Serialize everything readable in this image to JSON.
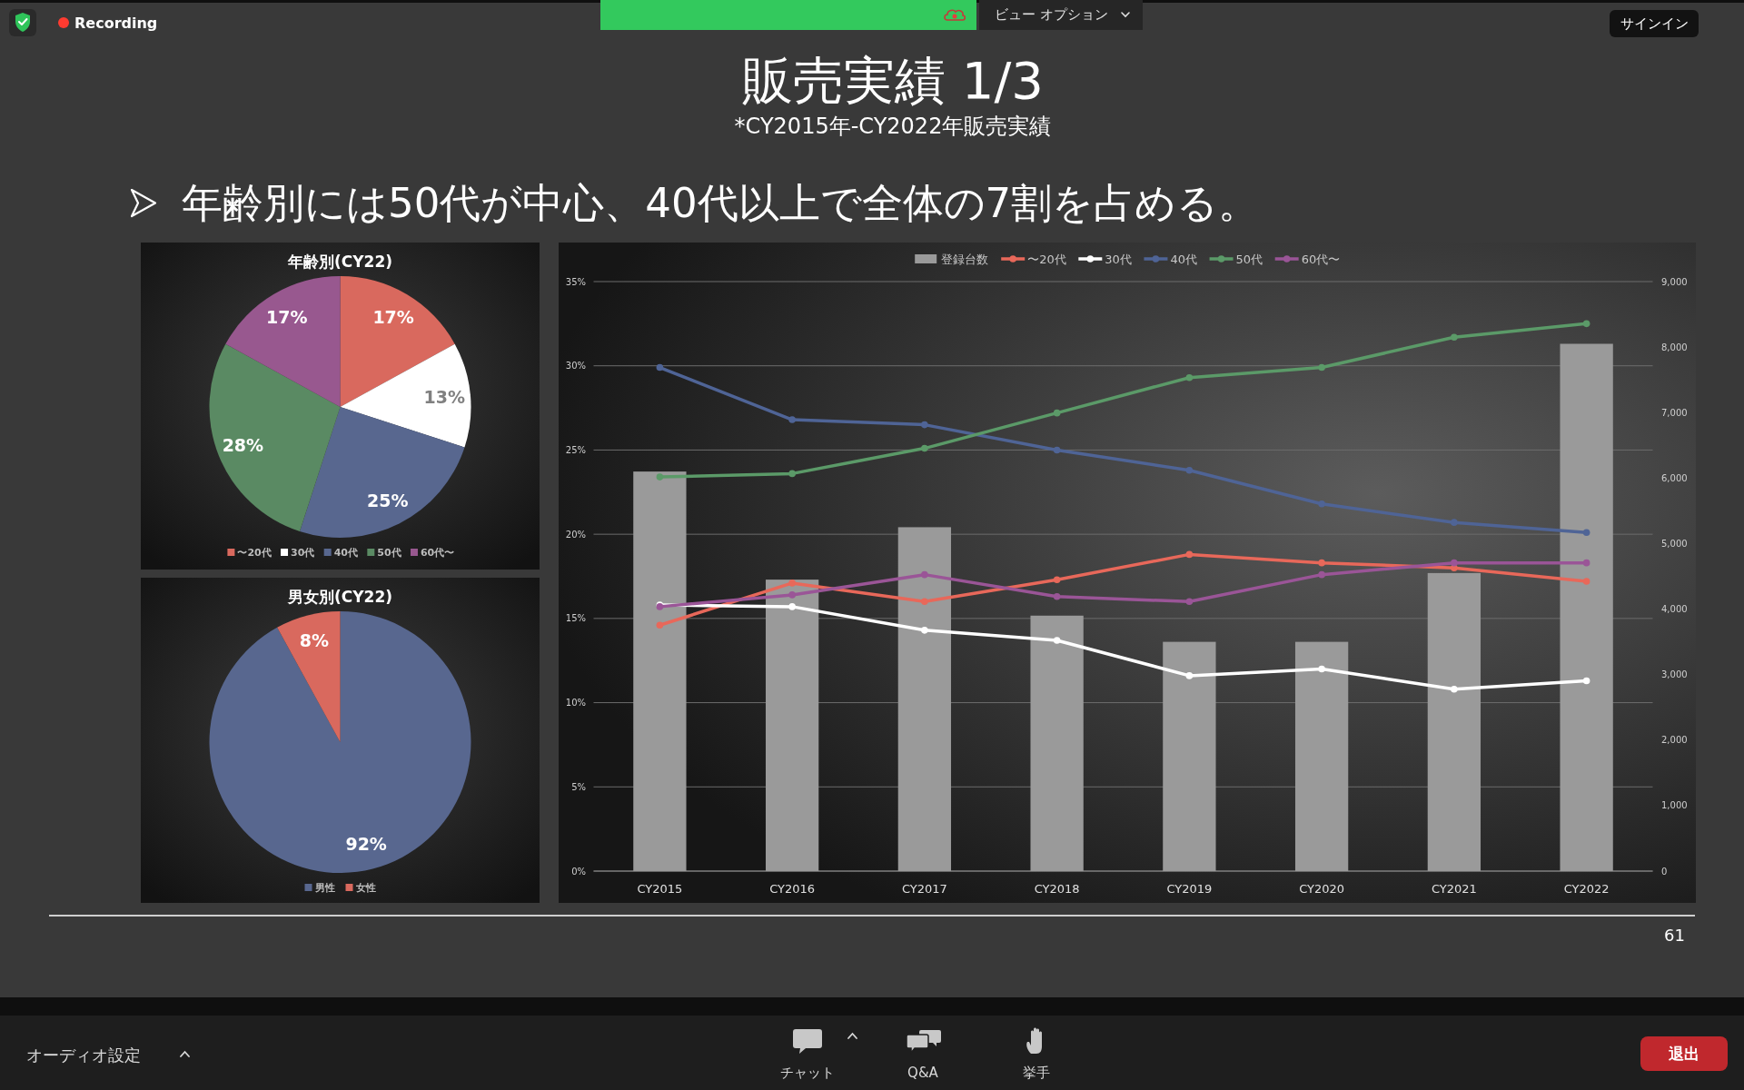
{
  "chart_data": [
    {
      "type": "other",
      "title": "販売実績 1/3",
      "subtitle": "*CY2015年-CY2022年販売実績",
      "annotations": [
        "年齢別には50代が中心、40代以上で全体の7割を占める。",
        "61",
        "Recording",
        "ビュー オプション",
        "サインイン",
        "オーディオ設定",
        "チャット",
        "Q&A",
        "挙手",
        "退出"
      ]
    },
    {
      "type": "pie",
      "title": "年齢別(CY22)",
      "categories": [
        "〜20代",
        "30代",
        "40代",
        "50代",
        "60代〜"
      ],
      "values": [
        17,
        13,
        25,
        28,
        17
      ],
      "colors": [
        "#d9695e",
        "#ffffff",
        "#58678f",
        "#5a8a63",
        "#98588f"
      ],
      "value_labels": [
        "17%",
        "13%",
        "25%",
        "28%",
        "17%"
      ],
      "legend": "bottom"
    },
    {
      "type": "pie",
      "title": "男女別(CY22)",
      "categories": [
        "男性",
        "女性"
      ],
      "values": [
        92,
        8
      ],
      "colors": [
        "#58678f",
        "#d9695e"
      ],
      "value_labels": [
        "92%",
        "8%"
      ],
      "legend": "bottom"
    },
    {
      "type": "bar",
      "categories": [
        "CY2015",
        "CY2016",
        "CY2017",
        "CY2018",
        "CY2019",
        "CY2020",
        "CY2021",
        "CY2022"
      ],
      "series": [
        {
          "name": "登録台数",
          "type": "bar",
          "axis": "y2",
          "color": "#9a9a9a",
          "values": [
            6100,
            4450,
            5250,
            3900,
            3500,
            3500,
            4550,
            8050
          ]
        },
        {
          "name": "〜20代",
          "type": "line",
          "color": "#e8685a",
          "values": [
            14.6,
            17.1,
            16.0,
            17.3,
            18.8,
            18.3,
            18.0,
            17.2
          ]
        },
        {
          "name": "30代",
          "type": "line",
          "color": "#ffffff",
          "values": [
            15.8,
            15.7,
            14.3,
            13.7,
            11.6,
            12.0,
            10.8,
            11.3
          ]
        },
        {
          "name": "40代",
          "type": "line",
          "color": "#4f6496",
          "values": [
            29.9,
            26.8,
            26.5,
            25.0,
            23.8,
            21.8,
            20.7,
            20.1
          ]
        },
        {
          "name": "50代",
          "type": "line",
          "color": "#5b9a68",
          "values": [
            23.4,
            23.6,
            25.1,
            27.2,
            29.3,
            29.9,
            31.7,
            32.5
          ]
        },
        {
          "name": "60代〜",
          "type": "line",
          "color": "#9a5597",
          "values": [
            15.7,
            16.4,
            17.6,
            16.3,
            16.0,
            17.6,
            18.3,
            18.3
          ]
        }
      ],
      "ylim": [
        0,
        35
      ],
      "yticks": [
        {
          "value": 0,
          "label": "0%"
        },
        {
          "value": 5,
          "label": "5%"
        },
        {
          "value": 10,
          "label": "10%"
        },
        {
          "value": 15,
          "label": "15%"
        },
        {
          "value": 20,
          "label": "20%"
        },
        {
          "value": 25,
          "label": "25%"
        },
        {
          "value": 30,
          "label": "30%"
        },
        {
          "value": 35,
          "label": "35%"
        }
      ],
      "y2lim": [
        0,
        9000
      ],
      "y2ticks": [
        0,
        {
          "value": 1000,
          "label": "1,000"
        },
        {
          "value": 2000,
          "label": "2,000"
        },
        {
          "value": 3000,
          "label": "3,000"
        },
        {
          "value": 4000,
          "label": "4,000"
        },
        {
          "value": 5000,
          "label": "5,000"
        },
        {
          "value": 6000,
          "label": "6,000"
        },
        {
          "value": 7000,
          "label": "7,000"
        },
        {
          "value": 8000,
          "label": "8,000"
        },
        {
          "value": 9000,
          "label": "9,000"
        }
      ],
      "grid": "y",
      "legend": "top",
      "marker": "circle"
    }
  ]
}
